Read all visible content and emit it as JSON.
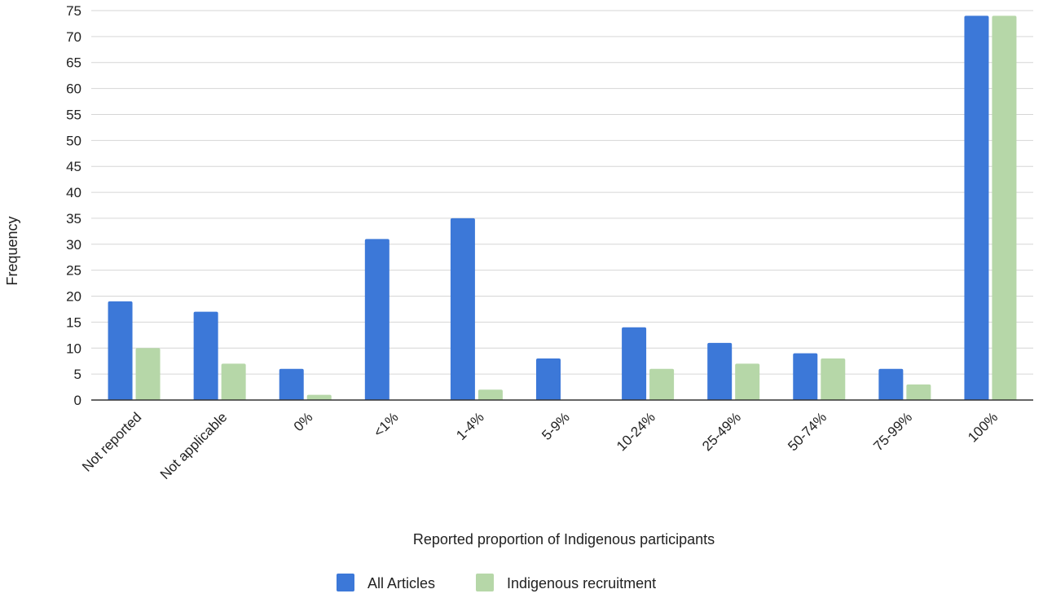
{
  "chart_data": {
    "type": "bar",
    "title": "",
    "xlabel": "Reported proportion of Indigenous participants",
    "ylabel": "Frequency",
    "ylim": [
      0,
      75
    ],
    "ytick_step": 5,
    "grid": true,
    "legend_position": "bottom",
    "categories": [
      "Not reported",
      "Not applicable",
      "0%",
      "<1%",
      "1-4%",
      "5-9%",
      "10-24%",
      "25-49%",
      "50-74%",
      "75-99%",
      "100%"
    ],
    "series": [
      {
        "name": "All Articles",
        "color": "#3c78d8",
        "values": [
          19,
          17,
          6,
          31,
          35,
          8,
          14,
          11,
          9,
          6,
          74
        ]
      },
      {
        "name": "Indigenous recruitment",
        "color": "#b6d7a8",
        "values": [
          10,
          7,
          1,
          0,
          2,
          0,
          6,
          7,
          8,
          3,
          74
        ]
      }
    ]
  }
}
